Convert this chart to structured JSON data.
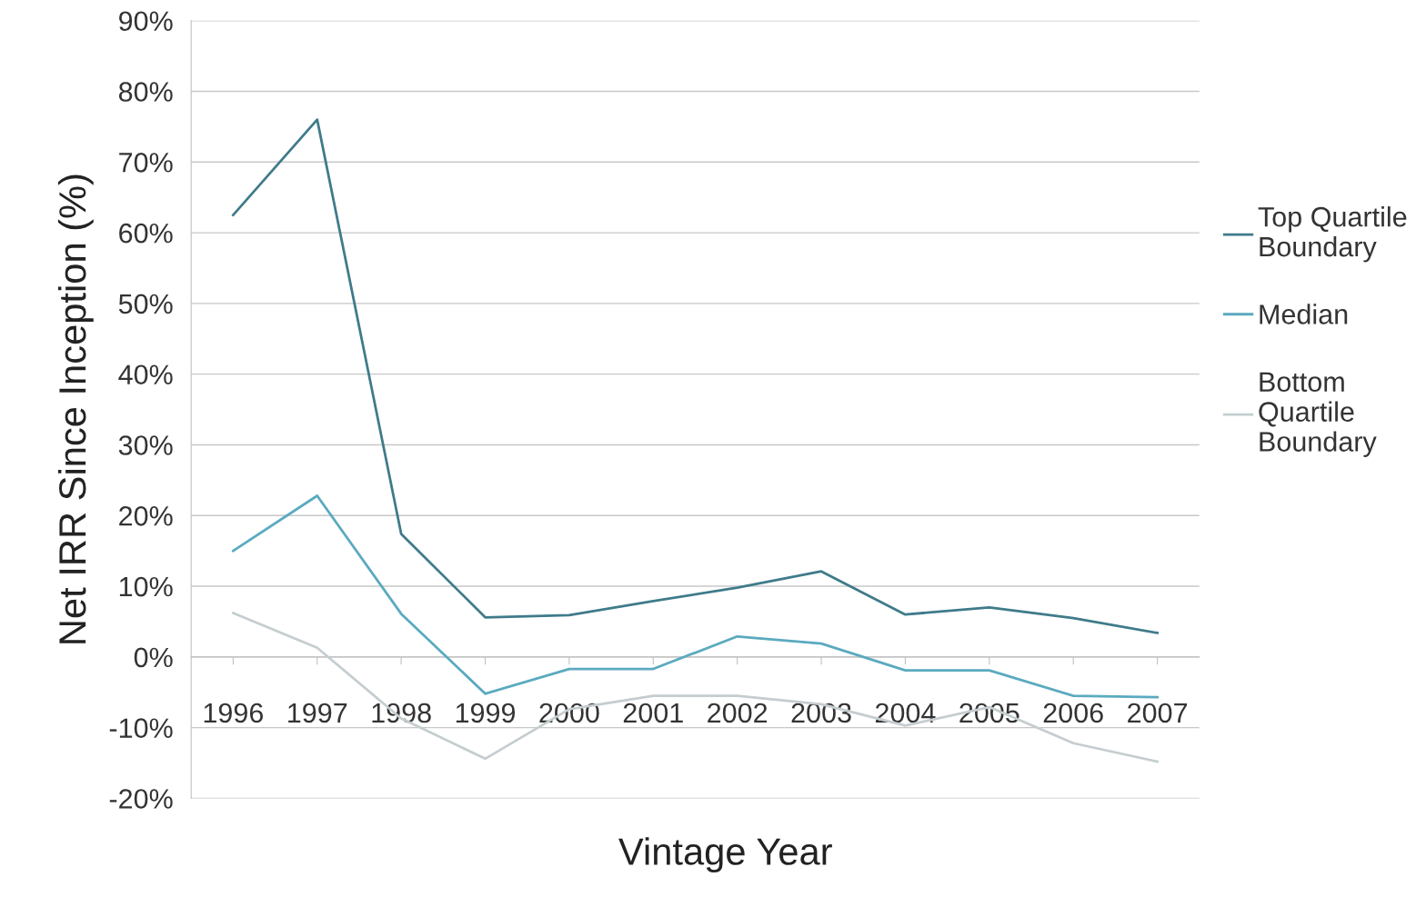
{
  "chart_data": {
    "type": "line",
    "xlabel": "Vintage Year",
    "ylabel": "Net IRR Since Inception (%)",
    "categories": [
      "1996",
      "1997",
      "1998",
      "1999",
      "2000",
      "2001",
      "2002",
      "2003",
      "2004",
      "2005",
      "2006",
      "2007"
    ],
    "series": [
      {
        "name": "Top Quartile Boundary",
        "color": "#3f7b8a",
        "values": [
          62.5,
          76,
          17.4,
          5.6,
          5.9,
          7.9,
          9.8,
          12.1,
          6.0,
          7.0,
          5.5,
          3.4
        ]
      },
      {
        "name": "Median",
        "color": "#5aaabf",
        "values": [
          15.0,
          22.8,
          6.1,
          -5.2,
          -1.7,
          -1.7,
          2.9,
          1.9,
          -1.9,
          -1.9,
          -5.5,
          -5.7
        ]
      },
      {
        "name": "Bottom Quartile Boundary",
        "color": "#c5cdd0",
        "values": [
          6.2,
          1.3,
          -8.7,
          -14.4,
          -7.4,
          -5.5,
          -5.5,
          -6.7,
          -9.7,
          -7.1,
          -12.2,
          -14.8
        ]
      }
    ],
    "ylim": [
      -20,
      90
    ],
    "yticks": [
      {
        "value": -20,
        "label": "-20%"
      },
      {
        "value": -10,
        "label": "-10%"
      },
      {
        "value": 0,
        "label": "0%"
      },
      {
        "value": 10,
        "label": "10%"
      },
      {
        "value": 20,
        "label": "20%"
      },
      {
        "value": 30,
        "label": "30%"
      },
      {
        "value": 40,
        "label": "40%"
      },
      {
        "value": 50,
        "label": "50%"
      },
      {
        "value": 60,
        "label": "60%"
      },
      {
        "value": 70,
        "label": "70%"
      },
      {
        "value": 80,
        "label": "80%"
      },
      {
        "value": 90,
        "label": "90%"
      }
    ],
    "grid": "y",
    "legend": "right",
    "marker": "none",
    "line_style": "solid"
  }
}
